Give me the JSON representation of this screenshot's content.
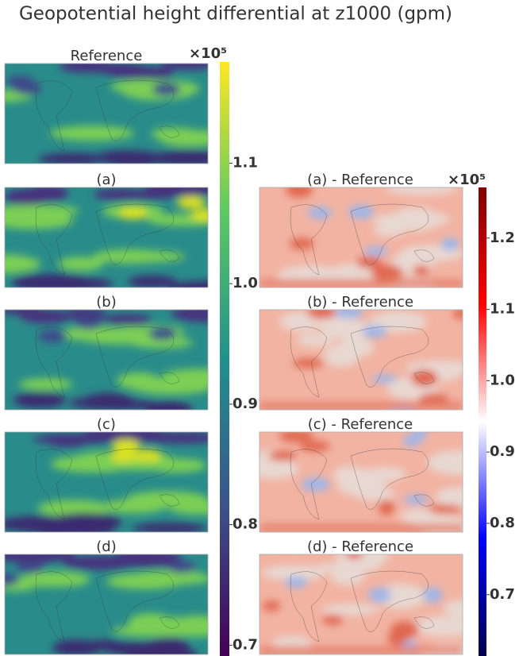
{
  "title": "Geopotential height differential at z1000 (gpm)",
  "left_panels": [
    "Reference",
    "(a)",
    "(b)",
    "(c)",
    "(d)"
  ],
  "right_panels": [
    "(a) - Reference",
    "(b) - Reference",
    "(c) - Reference",
    "(d) - Reference"
  ],
  "left_colorbar": {
    "multiplier": "×10⁵",
    "lim": [
      0.691,
      1.184
    ],
    "ticks": [
      0.7,
      0.8,
      0.9,
      {
        "value": 1.0,
        "label": "1.0"
      },
      1.1
    ]
  },
  "right_colorbar": {
    "multiplier": "×10⁵",
    "lim": [
      0.614,
      1.271
    ],
    "ticks": [
      0.7,
      0.8,
      0.9,
      {
        "value": 1.0,
        "label": "1.0"
      },
      1.1,
      1.2
    ]
  }
}
